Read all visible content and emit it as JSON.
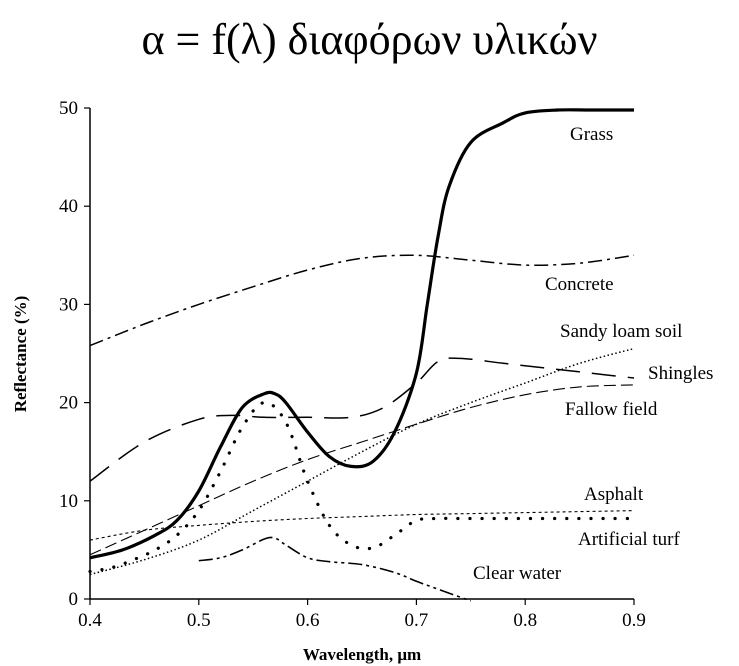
{
  "title": "α = f(λ) διαφόρων υλικών",
  "chart_data": {
    "type": "line",
    "xlabel": "Wavelength, μm",
    "ylabel": "Reflectance (%)",
    "xlim": [
      0.4,
      0.9
    ],
    "ylim": [
      0,
      50
    ],
    "xticks": [
      "0.4",
      "0.5",
      "0.6",
      "0.7",
      "0.8",
      "0.9"
    ],
    "yticks": [
      "0",
      "10",
      "20",
      "30",
      "40",
      "50"
    ],
    "series": [
      {
        "name": "Grass",
        "style": "solid-thick",
        "x": [
          0.4,
          0.43,
          0.46,
          0.48,
          0.5,
          0.52,
          0.54,
          0.56,
          0.57,
          0.58,
          0.6,
          0.62,
          0.64,
          0.66,
          0.68,
          0.7,
          0.71,
          0.72,
          0.73,
          0.75,
          0.78,
          0.8,
          0.83,
          0.86,
          0.9
        ],
        "y": [
          4.2,
          5.0,
          6.5,
          8.0,
          11.0,
          15.5,
          19.5,
          20.9,
          20.9,
          20.0,
          17.0,
          14.5,
          13.5,
          14.0,
          17.0,
          23.0,
          30.0,
          37.0,
          42.0,
          46.5,
          48.5,
          49.5,
          49.8,
          49.8,
          49.8
        ]
      },
      {
        "name": "Concrete",
        "style": "dash-dot",
        "x": [
          0.4,
          0.45,
          0.5,
          0.55,
          0.6,
          0.65,
          0.7,
          0.75,
          0.8,
          0.85,
          0.9
        ],
        "y": [
          25.8,
          28.0,
          30.0,
          31.8,
          33.5,
          34.7,
          35.0,
          34.5,
          34.0,
          34.2,
          35.0
        ]
      },
      {
        "name": "Sandy loam soil",
        "style": "dotted",
        "x": [
          0.4,
          0.45,
          0.5,
          0.55,
          0.6,
          0.65,
          0.7,
          0.75,
          0.8,
          0.85,
          0.9
        ],
        "y": [
          2.5,
          4.0,
          6.0,
          9.0,
          12.0,
          15.0,
          17.8,
          20.0,
          22.0,
          24.0,
          25.5
        ]
      },
      {
        "name": "Shingles",
        "style": "long-dash",
        "x": [
          0.4,
          0.45,
          0.5,
          0.53,
          0.56,
          0.6,
          0.64,
          0.67,
          0.7,
          0.72,
          0.74,
          0.78,
          0.82,
          0.86,
          0.9
        ],
        "y": [
          12.0,
          16.0,
          18.3,
          18.7,
          18.5,
          18.5,
          18.5,
          19.5,
          22.0,
          24.2,
          24.5,
          24.0,
          23.5,
          23.0,
          22.5
        ]
      },
      {
        "name": "Fallow field",
        "style": "dashed",
        "x": [
          0.4,
          0.45,
          0.5,
          0.55,
          0.6,
          0.65,
          0.7,
          0.75,
          0.8,
          0.85,
          0.9
        ],
        "y": [
          4.5,
          7.0,
          9.5,
          12.0,
          14.2,
          16.0,
          17.8,
          19.5,
          20.8,
          21.6,
          21.8
        ]
      },
      {
        "name": "Asphalt",
        "style": "short-dash",
        "x": [
          0.4,
          0.45,
          0.5,
          0.55,
          0.6,
          0.65,
          0.7,
          0.75,
          0.8,
          0.85,
          0.9
        ],
        "y": [
          6.0,
          7.0,
          7.5,
          7.9,
          8.2,
          8.4,
          8.6,
          8.7,
          8.8,
          8.9,
          9.0
        ]
      },
      {
        "name": "Artificial turf",
        "style": "sparse-dots",
        "x": [
          0.4,
          0.42,
          0.44,
          0.46,
          0.48,
          0.5,
          0.52,
          0.54,
          0.56,
          0.58,
          0.6,
          0.62,
          0.64,
          0.66,
          0.68,
          0.7,
          0.72,
          0.74,
          0.76,
          0.78,
          0.8,
          0.82,
          0.84,
          0.86,
          0.88,
          0.9
        ],
        "y": [
          2.8,
          3.2,
          4.0,
          5.0,
          6.5,
          9.0,
          13.0,
          17.5,
          20.0,
          18.0,
          12.0,
          7.5,
          5.5,
          5.2,
          6.5,
          8.0,
          8.2,
          8.2,
          8.2,
          8.2,
          8.2,
          8.2,
          8.2,
          8.2,
          8.2,
          8.2
        ]
      },
      {
        "name": "Clear water",
        "style": "dash-dot-dot",
        "x": [
          0.5,
          0.52,
          0.54,
          0.56,
          0.57,
          0.58,
          0.6,
          0.62,
          0.65,
          0.68,
          0.7,
          0.72,
          0.75
        ],
        "y": [
          3.9,
          4.2,
          5.0,
          6.1,
          6.2,
          5.5,
          4.2,
          3.8,
          3.5,
          2.7,
          1.8,
          1.0,
          -0.2
        ]
      }
    ],
    "labels": [
      "Grass",
      "Concrete",
      "Sandy loam soil",
      "Shingles",
      "Fallow field",
      "Asphalt",
      "Artificial turf",
      "Clear water"
    ],
    "grid": false,
    "legend": "inline labels"
  }
}
